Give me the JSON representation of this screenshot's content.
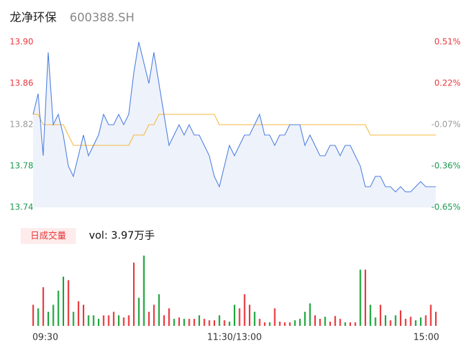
{
  "header": {
    "name": "龙净环保",
    "code": "600388.SH"
  },
  "chart_data": [
    {
      "type": "line",
      "x": [
        0,
        3,
        6,
        9,
        12,
        15,
        18,
        21,
        24,
        27,
        30,
        33,
        36,
        39,
        42,
        45,
        48,
        51,
        54,
        57,
        60,
        63,
        66,
        69,
        72,
        75,
        78,
        81,
        84,
        87,
        90,
        93,
        96,
        99,
        102,
        105,
        108,
        111,
        114,
        117,
        120,
        123,
        126,
        129,
        132,
        135,
        138,
        141,
        144,
        147,
        150,
        153,
        156,
        159,
        162,
        165,
        168,
        171,
        174,
        177,
        180,
        183,
        186,
        189,
        192,
        195,
        198,
        201,
        204,
        207,
        210,
        213,
        216,
        219,
        222,
        225,
        228,
        231,
        234,
        237,
        240
      ],
      "xlim": [
        0,
        240
      ],
      "xticks": [
        {
          "value": 0,
          "label": "09:30"
        },
        {
          "value": 120,
          "label": "11:30/13:00"
        },
        {
          "value": 240,
          "label": "15:00"
        }
      ],
      "ylim": [
        13.74,
        13.9
      ],
      "yticks": [
        {
          "value": 13.9,
          "label": "13.90"
        },
        13.86,
        13.82,
        13.78,
        13.74
      ],
      "y2lim": [
        -0.65,
        0.51
      ],
      "y2ticks": [
        {
          "value": 0.51,
          "label": "0.51%"
        },
        {
          "value": 0.22,
          "label": "0.22%"
        },
        {
          "value": -0.07,
          "label": "-0.07%"
        },
        {
          "value": -0.36,
          "label": "-0.36%"
        },
        {
          "value": -0.65,
          "label": "-0.65%"
        }
      ],
      "tick_colors": [
        "#e8363b",
        "#e8363b",
        "#999999",
        "#1a9a50",
        "#1a9a50"
      ],
      "area_color": "#eef2fb",
      "series": [
        {
          "name": "price",
          "color": "#4d7fe0",
          "values": [
            13.83,
            13.85,
            13.79,
            13.89,
            13.82,
            13.83,
            13.81,
            13.78,
            13.77,
            13.79,
            13.81,
            13.79,
            13.8,
            13.81,
            13.83,
            13.82,
            13.82,
            13.83,
            13.82,
            13.83,
            13.87,
            13.9,
            13.88,
            13.86,
            13.89,
            13.86,
            13.83,
            13.8,
            13.81,
            13.82,
            13.81,
            13.82,
            13.81,
            13.81,
            13.8,
            13.79,
            13.77,
            13.76,
            13.78,
            13.8,
            13.79,
            13.8,
            13.81,
            13.81,
            13.82,
            13.83,
            13.81,
            13.81,
            13.8,
            13.81,
            13.81,
            13.82,
            13.82,
            13.82,
            13.8,
            13.81,
            13.8,
            13.79,
            13.79,
            13.8,
            13.8,
            13.79,
            13.8,
            13.8,
            13.79,
            13.78,
            13.76,
            13.76,
            13.77,
            13.77,
            13.76,
            13.76,
            13.755,
            13.76,
            13.755,
            13.755,
            13.76,
            13.765,
            13.76,
            13.76,
            13.76
          ]
        },
        {
          "name": "average",
          "color": "#f5b73b",
          "values": [
            13.83,
            13.83,
            13.82,
            13.82,
            13.82,
            13.82,
            13.82,
            13.81,
            13.8,
            13.8,
            13.8,
            13.8,
            13.8,
            13.8,
            13.8,
            13.8,
            13.8,
            13.8,
            13.8,
            13.8,
            13.81,
            13.81,
            13.81,
            13.82,
            13.82,
            13.83,
            13.83,
            13.83,
            13.83,
            13.83,
            13.83,
            13.83,
            13.83,
            13.83,
            13.83,
            13.83,
            13.83,
            13.82,
            13.82,
            13.82,
            13.82,
            13.82,
            13.82,
            13.82,
            13.82,
            13.82,
            13.82,
            13.82,
            13.82,
            13.82,
            13.82,
            13.82,
            13.82,
            13.82,
            13.82,
            13.82,
            13.82,
            13.82,
            13.82,
            13.82,
            13.82,
            13.82,
            13.82,
            13.82,
            13.82,
            13.82,
            13.82,
            13.81,
            13.81,
            13.81,
            13.81,
            13.81,
            13.81,
            13.81,
            13.81,
            13.81,
            13.81,
            13.81,
            13.81,
            13.81,
            13.81
          ]
        }
      ]
    },
    {
      "type": "bar",
      "legend_label": "日成交量",
      "summary": "vol: 3.97万手",
      "x": [
        0,
        3,
        6,
        9,
        12,
        15,
        18,
        21,
        24,
        27,
        30,
        33,
        36,
        39,
        42,
        45,
        48,
        51,
        54,
        57,
        60,
        63,
        66,
        69,
        72,
        75,
        78,
        81,
        84,
        87,
        90,
        93,
        96,
        99,
        102,
        105,
        108,
        111,
        114,
        117,
        120,
        123,
        126,
        129,
        132,
        135,
        138,
        141,
        144,
        147,
        150,
        153,
        156,
        159,
        162,
        165,
        168,
        171,
        174,
        177,
        180,
        183,
        186,
        189,
        192,
        195,
        198,
        201,
        204,
        207,
        210,
        213,
        216,
        219,
        222,
        225,
        228,
        231,
        234,
        237,
        240
      ],
      "xlim": [
        0,
        240
      ],
      "ylim": [
        0,
        1000
      ],
      "values": [
        300,
        250,
        550,
        200,
        300,
        500,
        700,
        650,
        200,
        350,
        300,
        150,
        150,
        100,
        150,
        150,
        200,
        150,
        120,
        150,
        900,
        400,
        1000,
        200,
        300,
        450,
        150,
        250,
        100,
        120,
        100,
        100,
        100,
        150,
        100,
        80,
        80,
        150,
        80,
        60,
        300,
        250,
        450,
        300,
        200,
        100,
        50,
        50,
        250,
        60,
        50,
        50,
        80,
        100,
        200,
        320,
        150,
        100,
        130,
        60,
        140,
        100,
        50,
        50,
        50,
        800,
        800,
        300,
        120,
        300,
        150,
        80,
        150,
        220,
        100,
        130,
        80,
        120,
        150,
        300,
        200
      ],
      "colors": [
        "#e8363b",
        "#1aa33a",
        "#e8363b",
        "#1aa33a",
        "#1aa33a",
        "#1aa33a",
        "#1aa33a",
        "#e8363b",
        "#1aa33a",
        "#e8363b",
        "#e8363b",
        "#1aa33a",
        "#1aa33a",
        "#1aa33a",
        "#e8363b",
        "#e8363b",
        "#e8363b",
        "#1aa33a",
        "#e8363b",
        "#e8363b",
        "#e8363b",
        "#1aa33a",
        "#1aa33a",
        "#e8363b",
        "#e8363b",
        "#1aa33a",
        "#e8363b",
        "#e8363b",
        "#1aa33a",
        "#e8363b",
        "#1aa33a",
        "#e8363b",
        "#e8363b",
        "#1aa33a",
        "#e8363b",
        "#e8363b",
        "#e8363b",
        "#1aa33a",
        "#e8363b",
        "#1aa33a",
        "#1aa33a",
        "#e8363b",
        "#e8363b",
        "#e8363b",
        "#1aa33a",
        "#e8363b",
        "#e8363b",
        "#1aa33a",
        "#e8363b",
        "#e8363b",
        "#e8363b",
        "#e8363b",
        "#1aa33a",
        "#1aa33a",
        "#1aa33a",
        "#1aa33a",
        "#e8363b",
        "#e8363b",
        "#1aa33a",
        "#e8363b",
        "#e8363b",
        "#e8363b",
        "#1aa33a",
        "#e8363b",
        "#e8363b",
        "#1aa33a",
        "#e8363b",
        "#1aa33a",
        "#1aa33a",
        "#e8363b",
        "#1aa33a",
        "#e8363b",
        "#1aa33a",
        "#e8363b",
        "#e8363b",
        "#e8363b",
        "#1aa33a",
        "#1aa33a",
        "#e8363b",
        "#e8363b",
        "#e8363b"
      ]
    }
  ]
}
